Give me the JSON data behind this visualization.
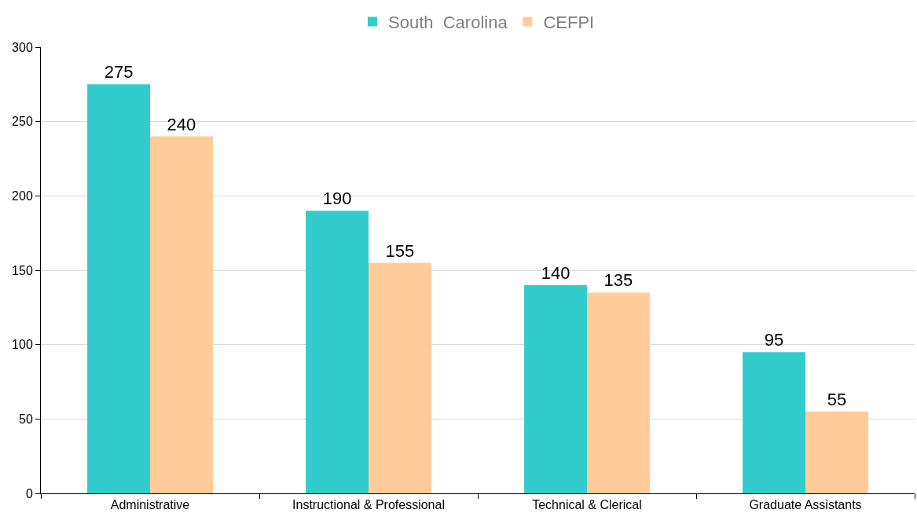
{
  "chart_data": {
    "type": "bar",
    "categories": [
      "Administrative",
      "Instructional & Professional",
      "Technical & Clerical",
      "Graduate Assistants"
    ],
    "series": [
      {
        "name": "South  Carolina",
        "color": "#33cccc",
        "values": [
          275,
          190,
          140,
          95
        ]
      },
      {
        "name": "CEFPI",
        "color": "#ffcc99",
        "values": [
          240,
          155,
          135,
          55
        ]
      }
    ],
    "ylim": [
      0,
      300
    ],
    "yticks": [
      0,
      50,
      100,
      150,
      200,
      250,
      300
    ],
    "grid": "y",
    "legend": "top",
    "data_labels": true
  }
}
